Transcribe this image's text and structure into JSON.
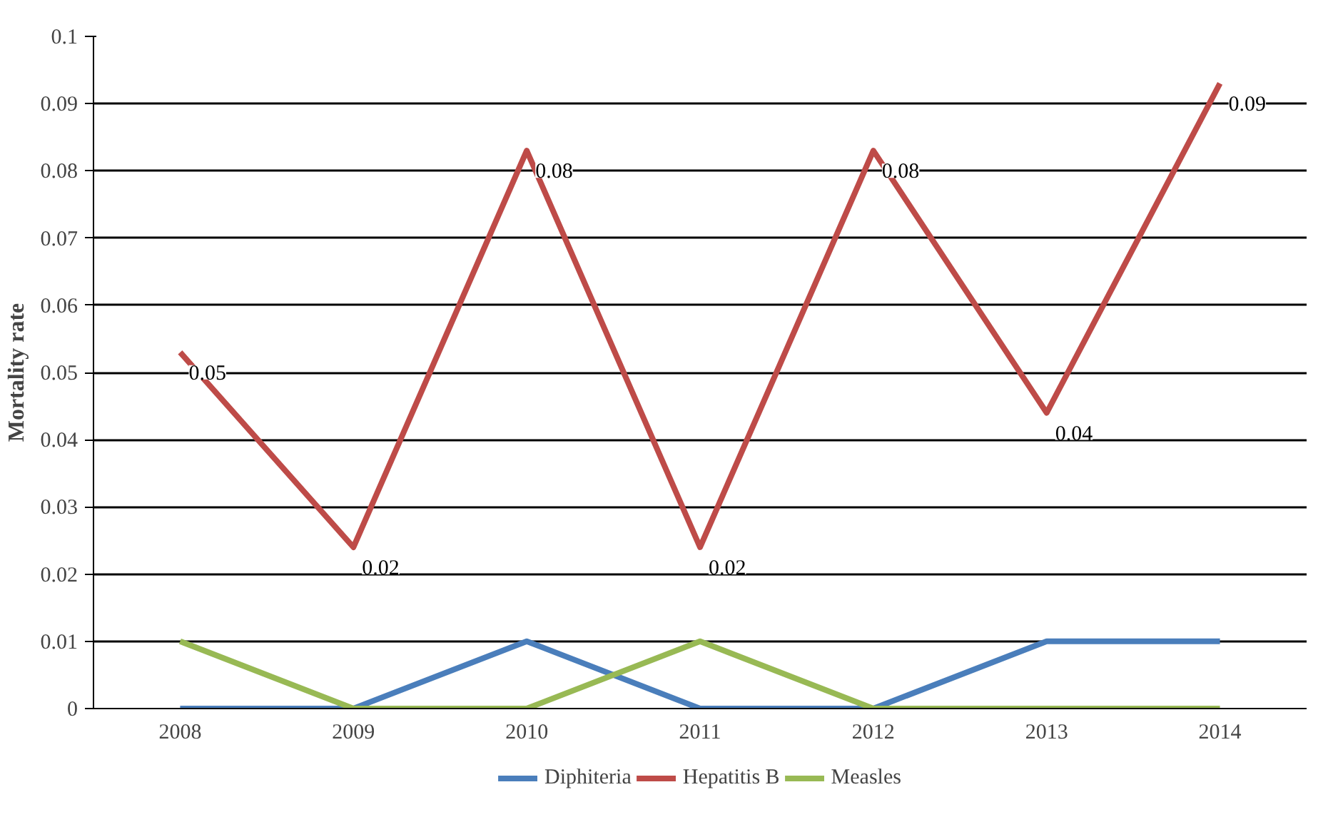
{
  "chart_data": {
    "type": "line",
    "ylabel": "Mortality rate",
    "categories": [
      "2008",
      "2009",
      "2010",
      "2011",
      "2012",
      "2013",
      "2014"
    ],
    "series": [
      {
        "name": "Diphiteria",
        "color": "#4a7ebb",
        "values": [
          0,
          0,
          0.01,
          0,
          0,
          0.01,
          0.01
        ]
      },
      {
        "name": "Hepatitis B",
        "color": "#be4b48",
        "values": [
          0.053,
          0.024,
          0.083,
          0.024,
          0.083,
          0.044,
          0.093
        ],
        "value_labels": [
          "0.05",
          "0.02",
          "0.08",
          "0.02",
          "0.08",
          "0.04",
          "0.09"
        ]
      },
      {
        "name": "Measles",
        "color": "#98b954",
        "values": [
          0.01,
          0,
          0,
          0.01,
          0,
          0,
          0
        ]
      }
    ],
    "ylim": [
      0,
      0.1
    ],
    "yticks": [
      0,
      0.01,
      0.02,
      0.03,
      0.04,
      0.05,
      0.06,
      0.07,
      0.08,
      0.09,
      0.1
    ],
    "grid": "y",
    "legend": "bottom",
    "marker": "none",
    "line_style": "solid"
  }
}
